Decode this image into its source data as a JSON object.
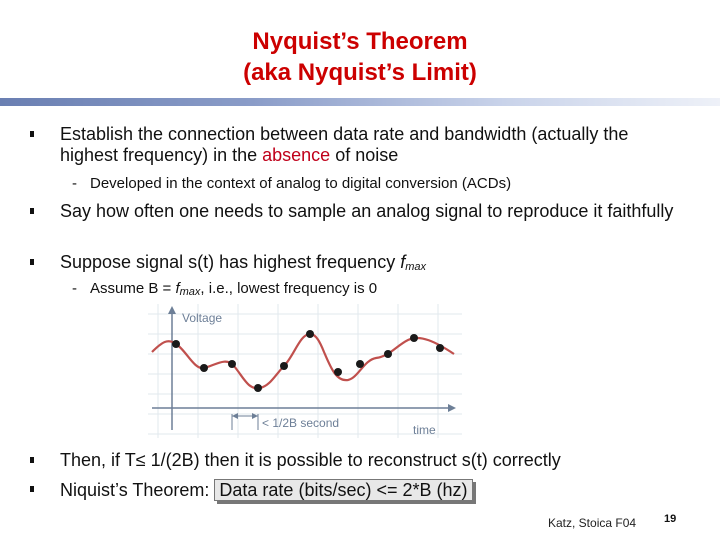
{
  "slide": {
    "title_line1": "Nyquist’s  Theorem",
    "title_line2": "(aka Nyquist’s Limit)",
    "b1_part1": "Establish the connection between data rate and bandwidth (actually the highest frequency) in the ",
    "b1_highlight": "absence",
    "b1_part2": " of noise",
    "sub1": "Developed in the context of analog to digital conversion (ACDs)",
    "b2": "Say how often one needs to sample an analog signal to reproduce it faithfully",
    "b3_part1": " Suppose signal s(t) has highest frequency ",
    "b3_f": "f",
    "b3_sub": "max",
    "sub2_part1": "Assume B = ",
    "sub2_f": "f",
    "sub2_sub": "max",
    "sub2_part2": ", i.e., lowest frequency is 0",
    "b4": "Then, if T≤ 1/(2B) then it is possible to reconstruct s(t) correctly",
    "b5_part1": "Niquist’s Theorem: ",
    "b5_boxed": "Data rate (bits/sec) <= 2*B (hz)",
    "dash": "-",
    "footer": "Katz, Stoica F04",
    "page": "19"
  },
  "figure": {
    "y_label": "Voltage",
    "x_label": "time",
    "interval_label": "< 1/2B second"
  }
}
